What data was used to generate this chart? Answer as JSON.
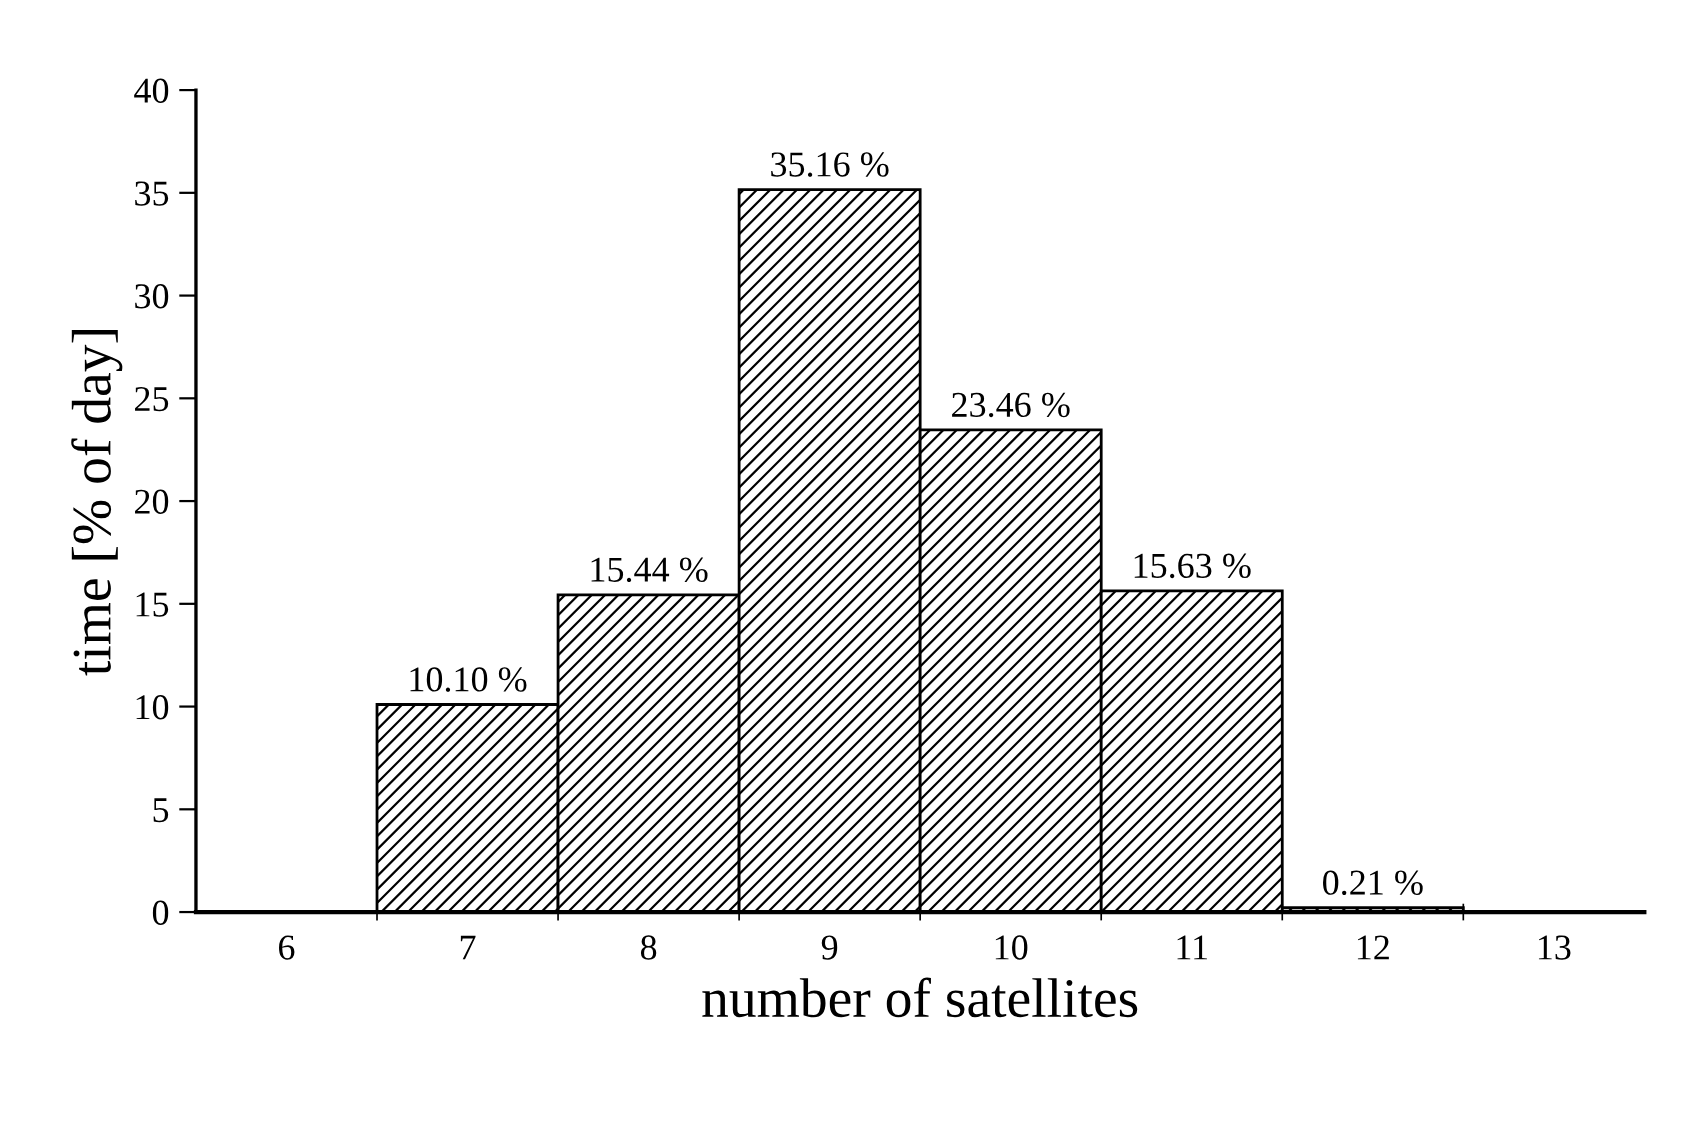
{
  "chart_data": {
    "type": "bar",
    "xlabel": "number of satellites",
    "ylabel": "time [% of day]",
    "categories": [
      "6",
      "7",
      "8",
      "9",
      "10",
      "11",
      "12",
      "13"
    ],
    "values": [
      null,
      10.1,
      15.44,
      35.16,
      23.46,
      15.63,
      0.21,
      null
    ],
    "value_labels": [
      null,
      "10.10 %",
      "15.44 %",
      "35.16 %",
      "23.46 %",
      "15.63 %",
      "0.21 %",
      null
    ],
    "color": "#000000",
    "ylim": [
      0,
      40
    ],
    "yticks": [
      0,
      5,
      10,
      15,
      20,
      25,
      30,
      35,
      40
    ],
    "grid": false,
    "legend": false
  }
}
